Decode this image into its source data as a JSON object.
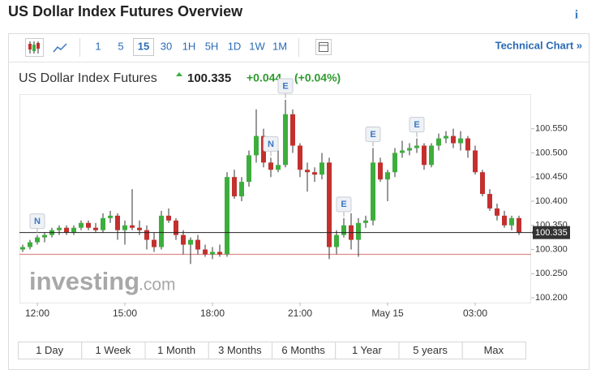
{
  "header": {
    "title": "US Dollar Index Futures Overview",
    "info": "i"
  },
  "toolbar": {
    "intervals": [
      "1",
      "5",
      "15",
      "30",
      "1H",
      "5H",
      "1D",
      "1W",
      "1M"
    ],
    "selected_interval": 2,
    "technical_chart": "Technical Chart »"
  },
  "quote": {
    "name": "US Dollar Index Futures",
    "change": "+0.044",
    "change_percent": "(+0.04%)"
  },
  "watermark": {
    "brand": "investing",
    "domain": ".com"
  },
  "ranges": [
    "1 Day",
    "1 Week",
    "1 Month",
    "3 Months",
    "6 Months",
    "1 Year",
    "5 years",
    "Max"
  ],
  "chart_data": {
    "type": "candlestick",
    "categories": [
      null,
      null,
      "12:00",
      null,
      null,
      null,
      null,
      null,
      null,
      null,
      null,
      null,
      null,
      null,
      "15:00",
      null,
      null,
      null,
      null,
      null,
      null,
      null,
      null,
      null,
      null,
      null,
      "18:00",
      null,
      null,
      null,
      null,
      null,
      null,
      null,
      null,
      null,
      null,
      null,
      "21:00",
      null,
      null,
      null,
      null,
      null,
      null,
      null,
      null,
      null,
      null,
      null,
      "May 15",
      null,
      null,
      null,
      null,
      null,
      null,
      null,
      null,
      null,
      null,
      null,
      "03:00",
      null,
      null,
      null,
      null,
      null,
      null
    ],
    "open": [
      100.3,
      100.305,
      100.315,
      100.325,
      100.33,
      100.34,
      100.345,
      100.335,
      100.345,
      100.355,
      100.345,
      100.34,
      100.365,
      100.37,
      100.34,
      100.35,
      100.345,
      100.34,
      100.32,
      100.305,
      100.37,
      100.36,
      100.33,
      100.31,
      100.32,
      100.3,
      100.29,
      100.295,
      100.29,
      100.45,
      100.41,
      100.44,
      100.495,
      100.535,
      100.48,
      100.465,
      100.475,
      100.58,
      100.515,
      100.465,
      100.46,
      100.455,
      100.48,
      100.305,
      100.33,
      100.35,
      100.32,
      100.355,
      100.36,
      100.48,
      100.445,
      100.46,
      100.5,
      100.505,
      100.51,
      100.515,
      100.475,
      100.515,
      100.53,
      100.535,
      100.52,
      100.53,
      100.505,
      100.46,
      100.415,
      100.385,
      100.37,
      100.35,
      100.365
    ],
    "high": [
      100.31,
      100.32,
      100.33,
      100.335,
      100.345,
      100.35,
      100.35,
      100.35,
      100.36,
      100.36,
      100.355,
      100.375,
      100.38,
      100.375,
      100.36,
      100.425,
      100.36,
      100.35,
      100.335,
      100.38,
      100.385,
      100.365,
      100.34,
      100.325,
      100.33,
      100.31,
      100.305,
      100.31,
      100.46,
      100.465,
      100.45,
      100.505,
      100.59,
      100.55,
      100.49,
      100.52,
      100.61,
      100.59,
      100.52,
      100.48,
      100.47,
      100.5,
      100.49,
      100.34,
      100.365,
      100.375,
      100.365,
      100.37,
      100.51,
      100.49,
      100.465,
      100.51,
      100.525,
      100.52,
      100.53,
      100.52,
      100.52,
      100.54,
      100.545,
      100.55,
      100.545,
      100.535,
      100.515,
      100.465,
      100.425,
      100.395,
      100.38,
      100.37,
      100.37
    ],
    "low": [
      100.295,
      100.3,
      100.31,
      100.315,
      100.325,
      100.33,
      100.33,
      100.33,
      100.34,
      100.34,
      100.335,
      100.335,
      100.355,
      100.32,
      100.31,
      100.34,
      100.33,
      100.3,
      100.295,
      100.3,
      100.355,
      100.32,
      100.29,
      100.27,
      100.29,
      100.285,
      100.28,
      100.285,
      100.285,
      100.405,
      100.4,
      100.43,
      100.48,
      100.47,
      100.45,
      100.46,
      100.47,
      100.5,
      100.45,
      100.42,
      100.44,
      100.445,
      100.28,
      100.29,
      100.325,
      100.3,
      100.285,
      100.345,
      100.35,
      100.44,
      100.4,
      100.45,
      100.49,
      100.495,
      100.5,
      100.465,
      100.47,
      100.505,
      100.52,
      100.51,
      100.505,
      100.49,
      100.455,
      100.41,
      100.38,
      100.36,
      100.345,
      100.34,
      100.33
    ],
    "close": [
      100.305,
      100.315,
      100.325,
      100.33,
      100.34,
      100.345,
      100.335,
      100.345,
      100.355,
      100.345,
      100.34,
      100.365,
      100.37,
      100.34,
      100.35,
      100.345,
      100.34,
      100.32,
      100.305,
      100.37,
      100.36,
      100.33,
      100.31,
      100.32,
      100.3,
      100.29,
      100.295,
      100.29,
      100.45,
      100.41,
      100.44,
      100.495,
      100.535,
      100.48,
      100.465,
      100.475,
      100.58,
      100.515,
      100.465,
      100.46,
      100.455,
      100.48,
      100.305,
      100.33,
      100.35,
      100.32,
      100.355,
      100.36,
      100.48,
      100.445,
      100.46,
      100.5,
      100.505,
      100.51,
      100.515,
      100.475,
      100.515,
      100.53,
      100.535,
      100.52,
      100.53,
      100.505,
      100.46,
      100.415,
      100.385,
      100.37,
      100.35,
      100.365,
      100.335
    ],
    "up_color": "#3dae3d",
    "down_color": "#c3302e",
    "ylim": [
      100.19,
      100.62
    ],
    "yticks": [
      {
        "value": 100.2,
        "label": "100.200"
      },
      {
        "value": 100.25,
        "label": "100.250"
      },
      {
        "value": 100.3,
        "label": "100.300"
      },
      {
        "value": 100.35,
        "label": "100.350"
      },
      {
        "value": 100.4,
        "label": "100.400"
      },
      {
        "value": 100.45,
        "label": "100.450"
      },
      {
        "value": 100.5,
        "label": "100.500"
      },
      {
        "value": 100.55,
        "label": "100.550"
      }
    ],
    "last_price": 100.335,
    "reference_line": 100.29,
    "events": [
      {
        "label": "N",
        "index": 2
      },
      {
        "label": "N",
        "index": 34
      },
      {
        "label": "E",
        "index": 36
      },
      {
        "label": "E",
        "index": 44
      },
      {
        "label": "E",
        "index": 48
      },
      {
        "label": "E",
        "index": 54
      }
    ]
  }
}
